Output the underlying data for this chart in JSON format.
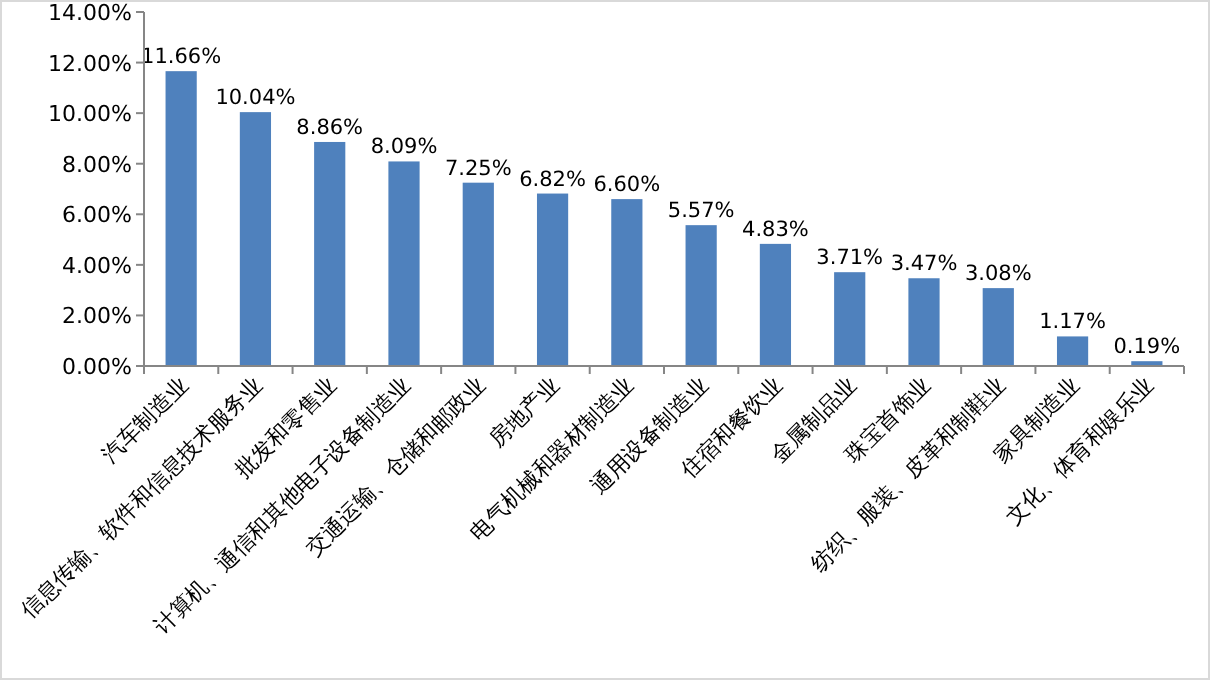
{
  "chart_data": {
    "type": "bar",
    "categories": [
      "汽车制造业",
      "信息传输、软件和信息技术服务业",
      "批发和零售业",
      "计算机、通信和其他电子设备制造业",
      "交通运输、仓储和邮政业",
      "房地产业",
      "电气机械和器材制造业",
      "通用设备制造业",
      "住宿和餐饮业",
      "金属制品业",
      "珠宝首饰业",
      "纺织、服装、皮革和制鞋业",
      "家具制造业",
      "文化、体育和娱乐业"
    ],
    "values": [
      11.66,
      10.04,
      8.86,
      8.09,
      7.25,
      6.82,
      6.6,
      5.57,
      4.83,
      3.71,
      3.47,
      3.08,
      1.17,
      0.19
    ],
    "value_labels": [
      "11.66%",
      "10.04%",
      "8.86%",
      "8.09%",
      "7.25%",
      "6.82%",
      "6.60%",
      "5.57%",
      "4.83%",
      "3.71%",
      "3.47%",
      "3.08%",
      "1.17%",
      "0.19%"
    ],
    "color": "#4f81bd",
    "ylim": [
      0,
      14
    ],
    "yticks": [
      {
        "value": 0,
        "label": "0.00%"
      },
      {
        "value": 2,
        "label": "2.00%"
      },
      {
        "value": 4,
        "label": "4.00%"
      },
      {
        "value": 6,
        "label": "6.00%"
      },
      {
        "value": 8,
        "label": "8.00%"
      },
      {
        "value": 10,
        "label": "10.00%"
      },
      {
        "value": 12,
        "label": "12.00%"
      },
      {
        "value": 14,
        "label": "14.00%"
      }
    ],
    "grid": false
  }
}
